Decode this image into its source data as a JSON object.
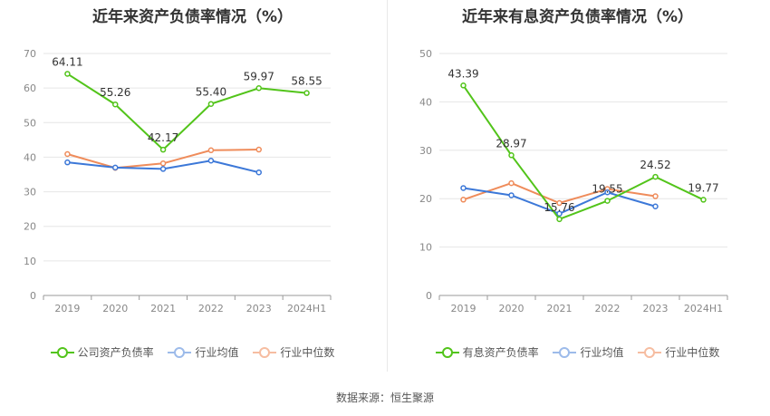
{
  "chart_data": [
    {
      "type": "line",
      "title": "近年来资产负债率情况（%）",
      "categories": [
        "2019",
        "2020",
        "2021",
        "2022",
        "2023",
        "2024H1"
      ],
      "ylim": [
        0,
        70
      ],
      "yticks": [
        0,
        10,
        20,
        30,
        40,
        50,
        60,
        70
      ],
      "grid": true,
      "legend_position": "bottom",
      "series": [
        {
          "name": "公司资产负债率",
          "color": "#52c41a",
          "values": [
            64.11,
            55.26,
            42.17,
            55.4,
            59.97,
            58.55
          ],
          "labels": [
            "64.11",
            "55.26",
            "42.17",
            "55.40",
            "59.97",
            "58.55"
          ]
        },
        {
          "name": "行业均值",
          "color": "#3c78d8",
          "values": [
            38.5,
            37.0,
            36.6,
            39.0,
            35.6,
            null
          ]
        },
        {
          "name": "行业中位数",
          "color": "#ef8c5b",
          "values": [
            40.9,
            36.9,
            38.2,
            42.0,
            42.2,
            null
          ]
        }
      ]
    },
    {
      "type": "line",
      "title": "近年来有息资产负债率情况（%）",
      "categories": [
        "2019",
        "2020",
        "2021",
        "2022",
        "2023",
        "2024H1"
      ],
      "ylim": [
        0,
        50
      ],
      "yticks": [
        0,
        10,
        20,
        30,
        40,
        50
      ],
      "grid": true,
      "legend_position": "bottom",
      "series": [
        {
          "name": "有息资产负债率",
          "color": "#52c41a",
          "values": [
            43.39,
            28.97,
            15.76,
            19.55,
            24.52,
            19.77
          ],
          "labels": [
            "43.39",
            "28.97",
            "15.76",
            "19.55",
            "24.52",
            "19.77"
          ]
        },
        {
          "name": "行业均值",
          "color": "#3c78d8",
          "values": [
            22.2,
            20.7,
            16.9,
            21.3,
            18.4,
            null
          ]
        },
        {
          "name": "行业中位数",
          "color": "#ef8c5b",
          "values": [
            19.8,
            23.2,
            19.1,
            22.0,
            20.5,
            null
          ]
        }
      ]
    }
  ],
  "source_text": "数据来源：恒生聚源"
}
